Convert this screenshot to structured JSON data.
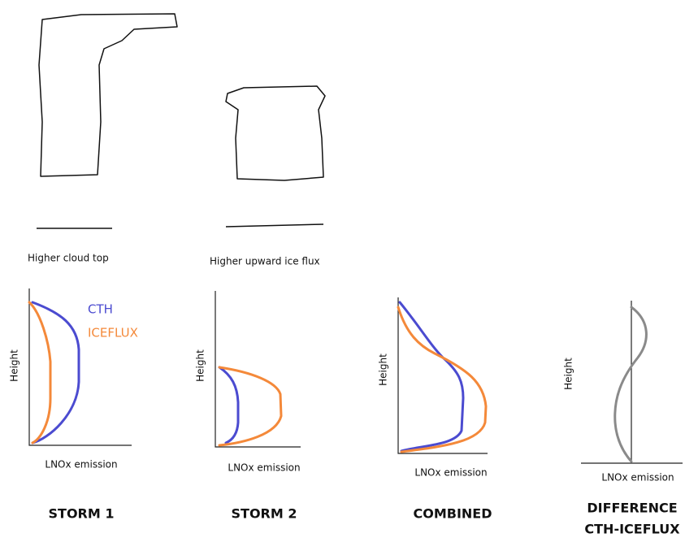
{
  "clouds": [
    {
      "label": "Higher cloud top"
    },
    {
      "label": "Higher upward ice flux"
    }
  ],
  "legend": {
    "items": [
      {
        "name": "CTH",
        "color": "#4b4bd0"
      },
      {
        "name": "ICEFLUX",
        "color": "#f4893a"
      }
    ]
  },
  "difference_color": "#8a8a8a",
  "panels": [
    {
      "title": [
        "STORM 1"
      ],
      "y_label": "Height",
      "x_label": "LNOx emission"
    },
    {
      "title": [
        "STORM 2"
      ],
      "y_label": "Height",
      "x_label": "LNOx emission"
    },
    {
      "title": [
        "COMBINED"
      ],
      "y_label": "Height",
      "x_label": "LNOx emission"
    },
    {
      "title": [
        "DIFFERENCE",
        "CTH-ICEFLUX"
      ],
      "y_label": "Height",
      "x_label": "LNOx emission"
    }
  ]
}
